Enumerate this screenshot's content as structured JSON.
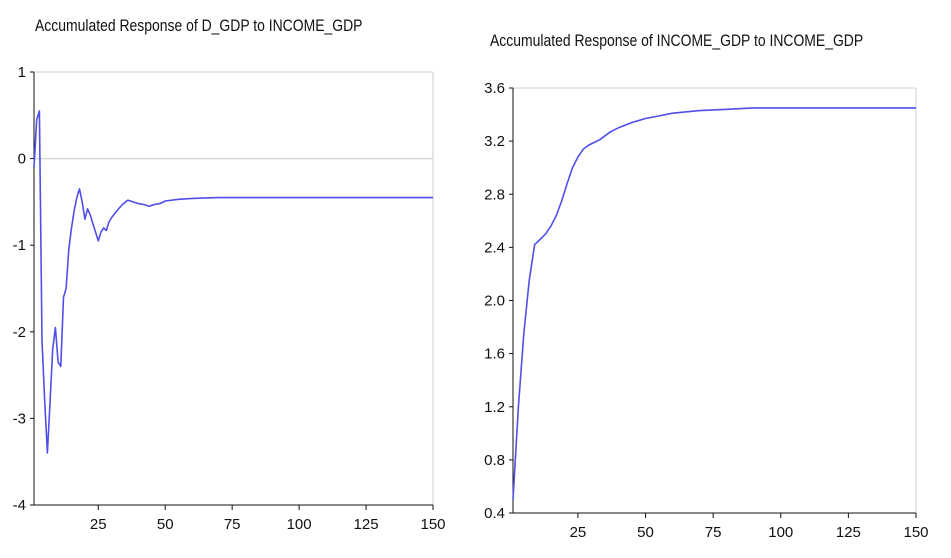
{
  "colors": {
    "line": "#4F4FEA",
    "zero_line": "#d9d9d9",
    "axis": "#111111",
    "frame": "#cfcfcf"
  },
  "chart_data": [
    {
      "type": "line",
      "title": "Accumulated Response of D_GDP to INCOME_GDP",
      "xlabel": "",
      "ylabel": "",
      "xlim": [
        1,
        150
      ],
      "ylim": [
        -4,
        1
      ],
      "x_ticks": [
        25,
        50,
        75,
        100,
        125,
        150
      ],
      "x_tick_labels": [
        "25",
        "50",
        "75",
        "100",
        "125",
        "150"
      ],
      "y_ticks": [
        1,
        0,
        -1,
        -2,
        -3,
        -4
      ],
      "y_tick_labels": [
        "1",
        "0",
        "-1",
        "-2",
        "-3",
        "-4"
      ],
      "zero_line": true,
      "grid": false,
      "series": [
        {
          "x": [
            1,
            2,
            3,
            4,
            5,
            6,
            7,
            8,
            9,
            10,
            11,
            12,
            13,
            14,
            15,
            16,
            17,
            18,
            19,
            20,
            21,
            22,
            23,
            24,
            25,
            26,
            27,
            28,
            29,
            30,
            32,
            34,
            36,
            38,
            40,
            42,
            44,
            46,
            48,
            50,
            55,
            60,
            70,
            80,
            90,
            100,
            125,
            150
          ],
          "values": [
            -0.1,
            0.45,
            0.55,
            -2.1,
            -2.8,
            -3.4,
            -2.8,
            -2.2,
            -1.95,
            -2.35,
            -2.4,
            -1.6,
            -1.5,
            -1.05,
            -0.8,
            -0.6,
            -0.45,
            -0.35,
            -0.5,
            -0.7,
            -0.58,
            -0.65,
            -0.75,
            -0.85,
            -0.95,
            -0.85,
            -0.8,
            -0.83,
            -0.73,
            -0.68,
            -0.6,
            -0.53,
            -0.48,
            -0.5,
            -0.52,
            -0.53,
            -0.55,
            -0.53,
            -0.52,
            -0.49,
            -0.47,
            -0.46,
            -0.45,
            -0.45,
            -0.45,
            -0.45,
            -0.45,
            -0.45
          ]
        }
      ]
    },
    {
      "type": "line",
      "title": "Accumulated Response of INCOME_GDP to INCOME_GDP",
      "xlabel": "",
      "ylabel": "",
      "xlim": [
        1,
        150
      ],
      "ylim": [
        0.4,
        3.6
      ],
      "x_ticks": [
        25,
        50,
        75,
        100,
        125,
        150
      ],
      "x_tick_labels": [
        "25",
        "50",
        "75",
        "100",
        "125",
        "150"
      ],
      "y_ticks": [
        3.6,
        3.2,
        2.8,
        2.4,
        2.0,
        1.6,
        1.2,
        0.8,
        0.4
      ],
      "y_tick_labels": [
        "3.6",
        "3.2",
        "2.8",
        "2.4",
        "2.0",
        "1.6",
        "1.2",
        "0.8",
        "0.4"
      ],
      "zero_line": false,
      "grid": false,
      "series": [
        {
          "x": [
            1,
            3,
            5,
            7,
            9,
            11,
            13,
            15,
            17,
            19,
            21,
            23,
            25,
            27,
            29,
            31,
            33,
            35,
            37,
            40,
            45,
            50,
            55,
            60,
            70,
            80,
            90,
            100,
            125,
            150
          ],
          "values": [
            0.5,
            1.2,
            1.75,
            2.15,
            2.42,
            2.46,
            2.5,
            2.56,
            2.64,
            2.75,
            2.88,
            3.0,
            3.08,
            3.14,
            3.17,
            3.19,
            3.21,
            3.24,
            3.27,
            3.3,
            3.34,
            3.37,
            3.39,
            3.41,
            3.43,
            3.44,
            3.45,
            3.45,
            3.45,
            3.45
          ]
        }
      ]
    }
  ]
}
